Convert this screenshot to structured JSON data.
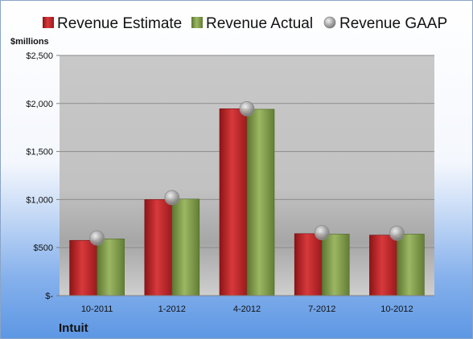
{
  "company": "Intuit",
  "chart_data": {
    "type": "bar",
    "unit_label": "$millions",
    "categories": [
      "10-2011",
      "1-2012",
      "4-2012",
      "7-2012",
      "10-2012"
    ],
    "ylim": [
      0,
      2500
    ],
    "yticks": [
      {
        "value": 0,
        "label": "$-"
      },
      {
        "value": 500,
        "label": "$500"
      },
      {
        "value": 1000,
        "label": "$1,000"
      },
      {
        "value": 1500,
        "label": "$1,500"
      },
      {
        "value": 2000,
        "label": "$2,000"
      },
      {
        "value": 2500,
        "label": "$2,500"
      }
    ],
    "grid": true,
    "legend_position": "top",
    "series": [
      {
        "name": "Revenue Estimate",
        "kind": "bar",
        "color": "#c0282c",
        "values": [
          575,
          1000,
          1945,
          645,
          630
        ]
      },
      {
        "name": "Revenue Actual",
        "kind": "bar",
        "color": "#7e9a48",
        "values": [
          590,
          1005,
          1940,
          640,
          640
        ]
      },
      {
        "name": "Revenue GAAP",
        "kind": "marker",
        "color": "#a8a8a8",
        "values": [
          600,
          1020,
          1945,
          655,
          650
        ]
      }
    ]
  }
}
